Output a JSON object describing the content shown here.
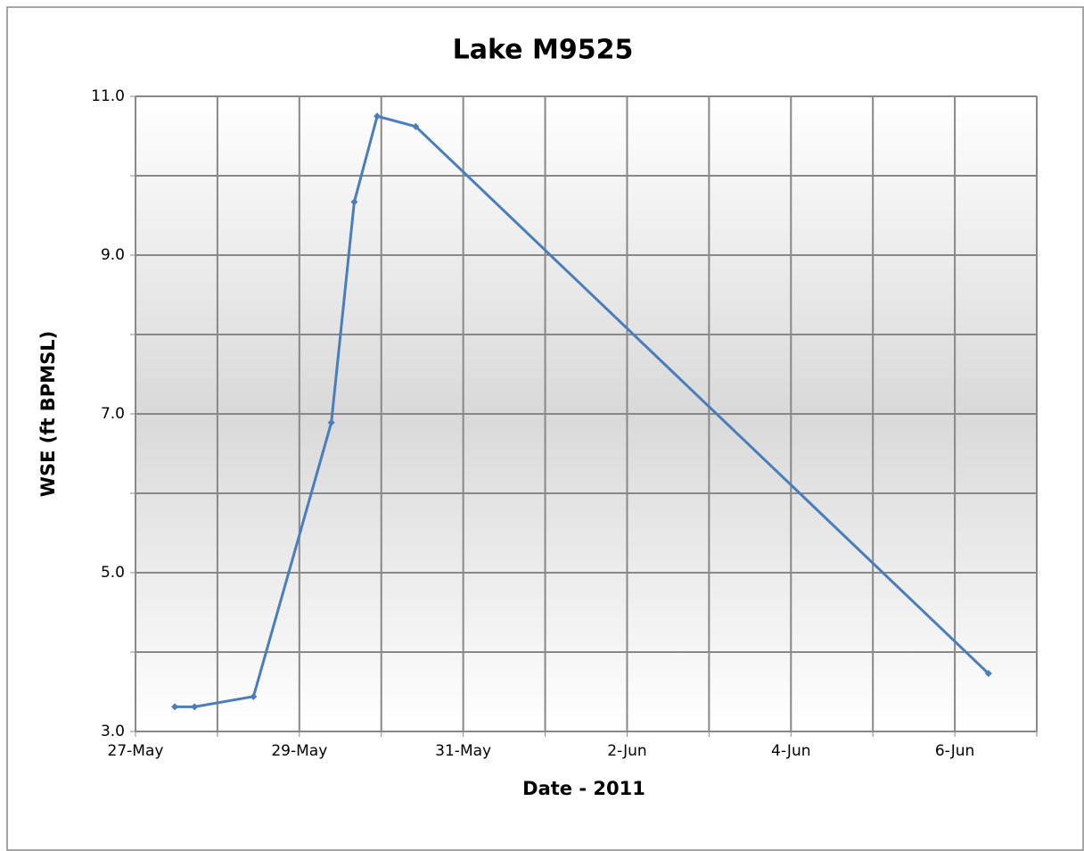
{
  "chart_data": {
    "type": "line",
    "title": "Lake M9525",
    "x_label": "Date - 2011",
    "y_label": "WSE (ft BPMSL)",
    "series": [
      {
        "name": "Lake M9525",
        "color": "#4a7ebb",
        "x": [
          147.48,
          147.72,
          148.44,
          149.39,
          149.67,
          149.95,
          150.42,
          157.41
        ],
        "values": [
          3.31,
          3.31,
          3.44,
          6.89,
          9.67,
          10.75,
          10.62,
          3.73
        ]
      }
    ],
    "xlim": [
      147,
      158
    ],
    "xticks": [
      {
        "value": 147,
        "label": "27-May"
      },
      {
        "value": 149,
        "label": "29-May"
      },
      {
        "value": 151,
        "label": "31-May"
      },
      {
        "value": 153,
        "label": "2-Jun"
      },
      {
        "value": 155,
        "label": "4-Jun"
      },
      {
        "value": 157,
        "label": "6-Jun"
      }
    ],
    "xminorticks": [
      148,
      150,
      152,
      154,
      156,
      158
    ],
    "ylim": [
      3,
      11
    ],
    "yticks": [
      {
        "value": 3,
        "label": "3.0"
      },
      {
        "value": 5,
        "label": "5.0"
      },
      {
        "value": 7,
        "label": "7.0"
      },
      {
        "value": 9,
        "label": "9.0"
      },
      {
        "value": 11,
        "label": "11.0"
      }
    ],
    "yminorticks": [
      4,
      6,
      8,
      10
    ],
    "grid": true
  }
}
